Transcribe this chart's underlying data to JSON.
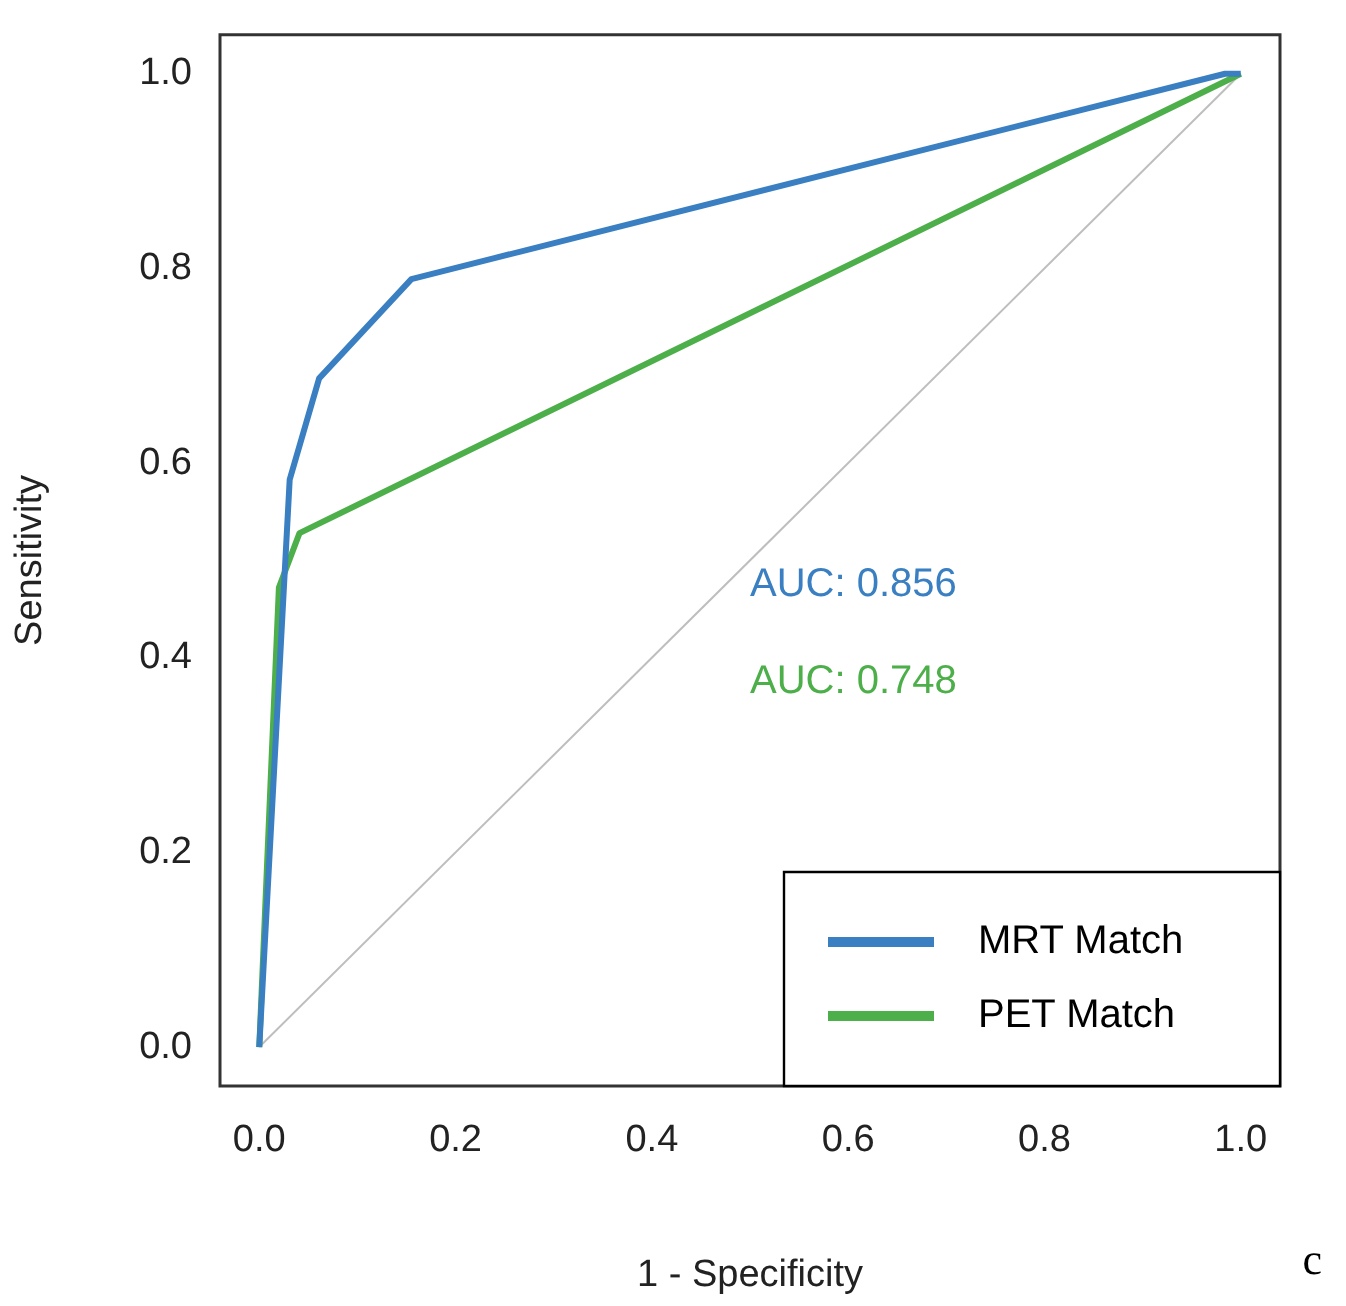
{
  "chart_data": {
    "type": "line",
    "xlabel": "1 - Specificity",
    "ylabel": "Sensitivity",
    "xlim": [
      -0.04,
      1.04
    ],
    "ylim": [
      -0.04,
      1.04
    ],
    "xticks": [
      {
        "value": 0,
        "label": "0.0"
      },
      {
        "value": 0.2,
        "label": "0.2"
      },
      {
        "value": 0.4,
        "label": "0.4"
      },
      {
        "value": 0.6,
        "label": "0.6"
      },
      {
        "value": 0.8,
        "label": "0.8"
      },
      {
        "value": 1,
        "label": "1.0"
      }
    ],
    "yticks": [
      {
        "value": 0,
        "label": "0.0"
      },
      {
        "value": 0.2,
        "label": "0.2"
      },
      {
        "value": 0.4,
        "label": "0.4"
      },
      {
        "value": 0.6,
        "label": "0.6"
      },
      {
        "value": 0.8,
        "label": "0.8"
      },
      {
        "value": 1,
        "label": "1.0"
      }
    ],
    "series": [
      {
        "name": "MRT Match",
        "color": "#3a7fc1",
        "x": [
          0,
          0.031,
          0.061,
          0.155,
          0.984,
          1
        ],
        "values": [
          0,
          0.583,
          0.687,
          0.789,
          1,
          1
        ]
      },
      {
        "name": "PET Match",
        "color": "#4daf4a",
        "x": [
          0,
          0.02,
          0.041,
          1
        ],
        "values": [
          0,
          0.472,
          0.528,
          1
        ]
      },
      {
        "color": "#bebebe",
        "x": [
          0,
          1
        ],
        "values": [
          0,
          1
        ]
      }
    ],
    "annotations": [
      "AUC: 0.856",
      "AUC: 0.748",
      "c"
    ],
    "legend": "bottom right",
    "grid": false,
    "marker": "none",
    "line_style": "solid"
  }
}
